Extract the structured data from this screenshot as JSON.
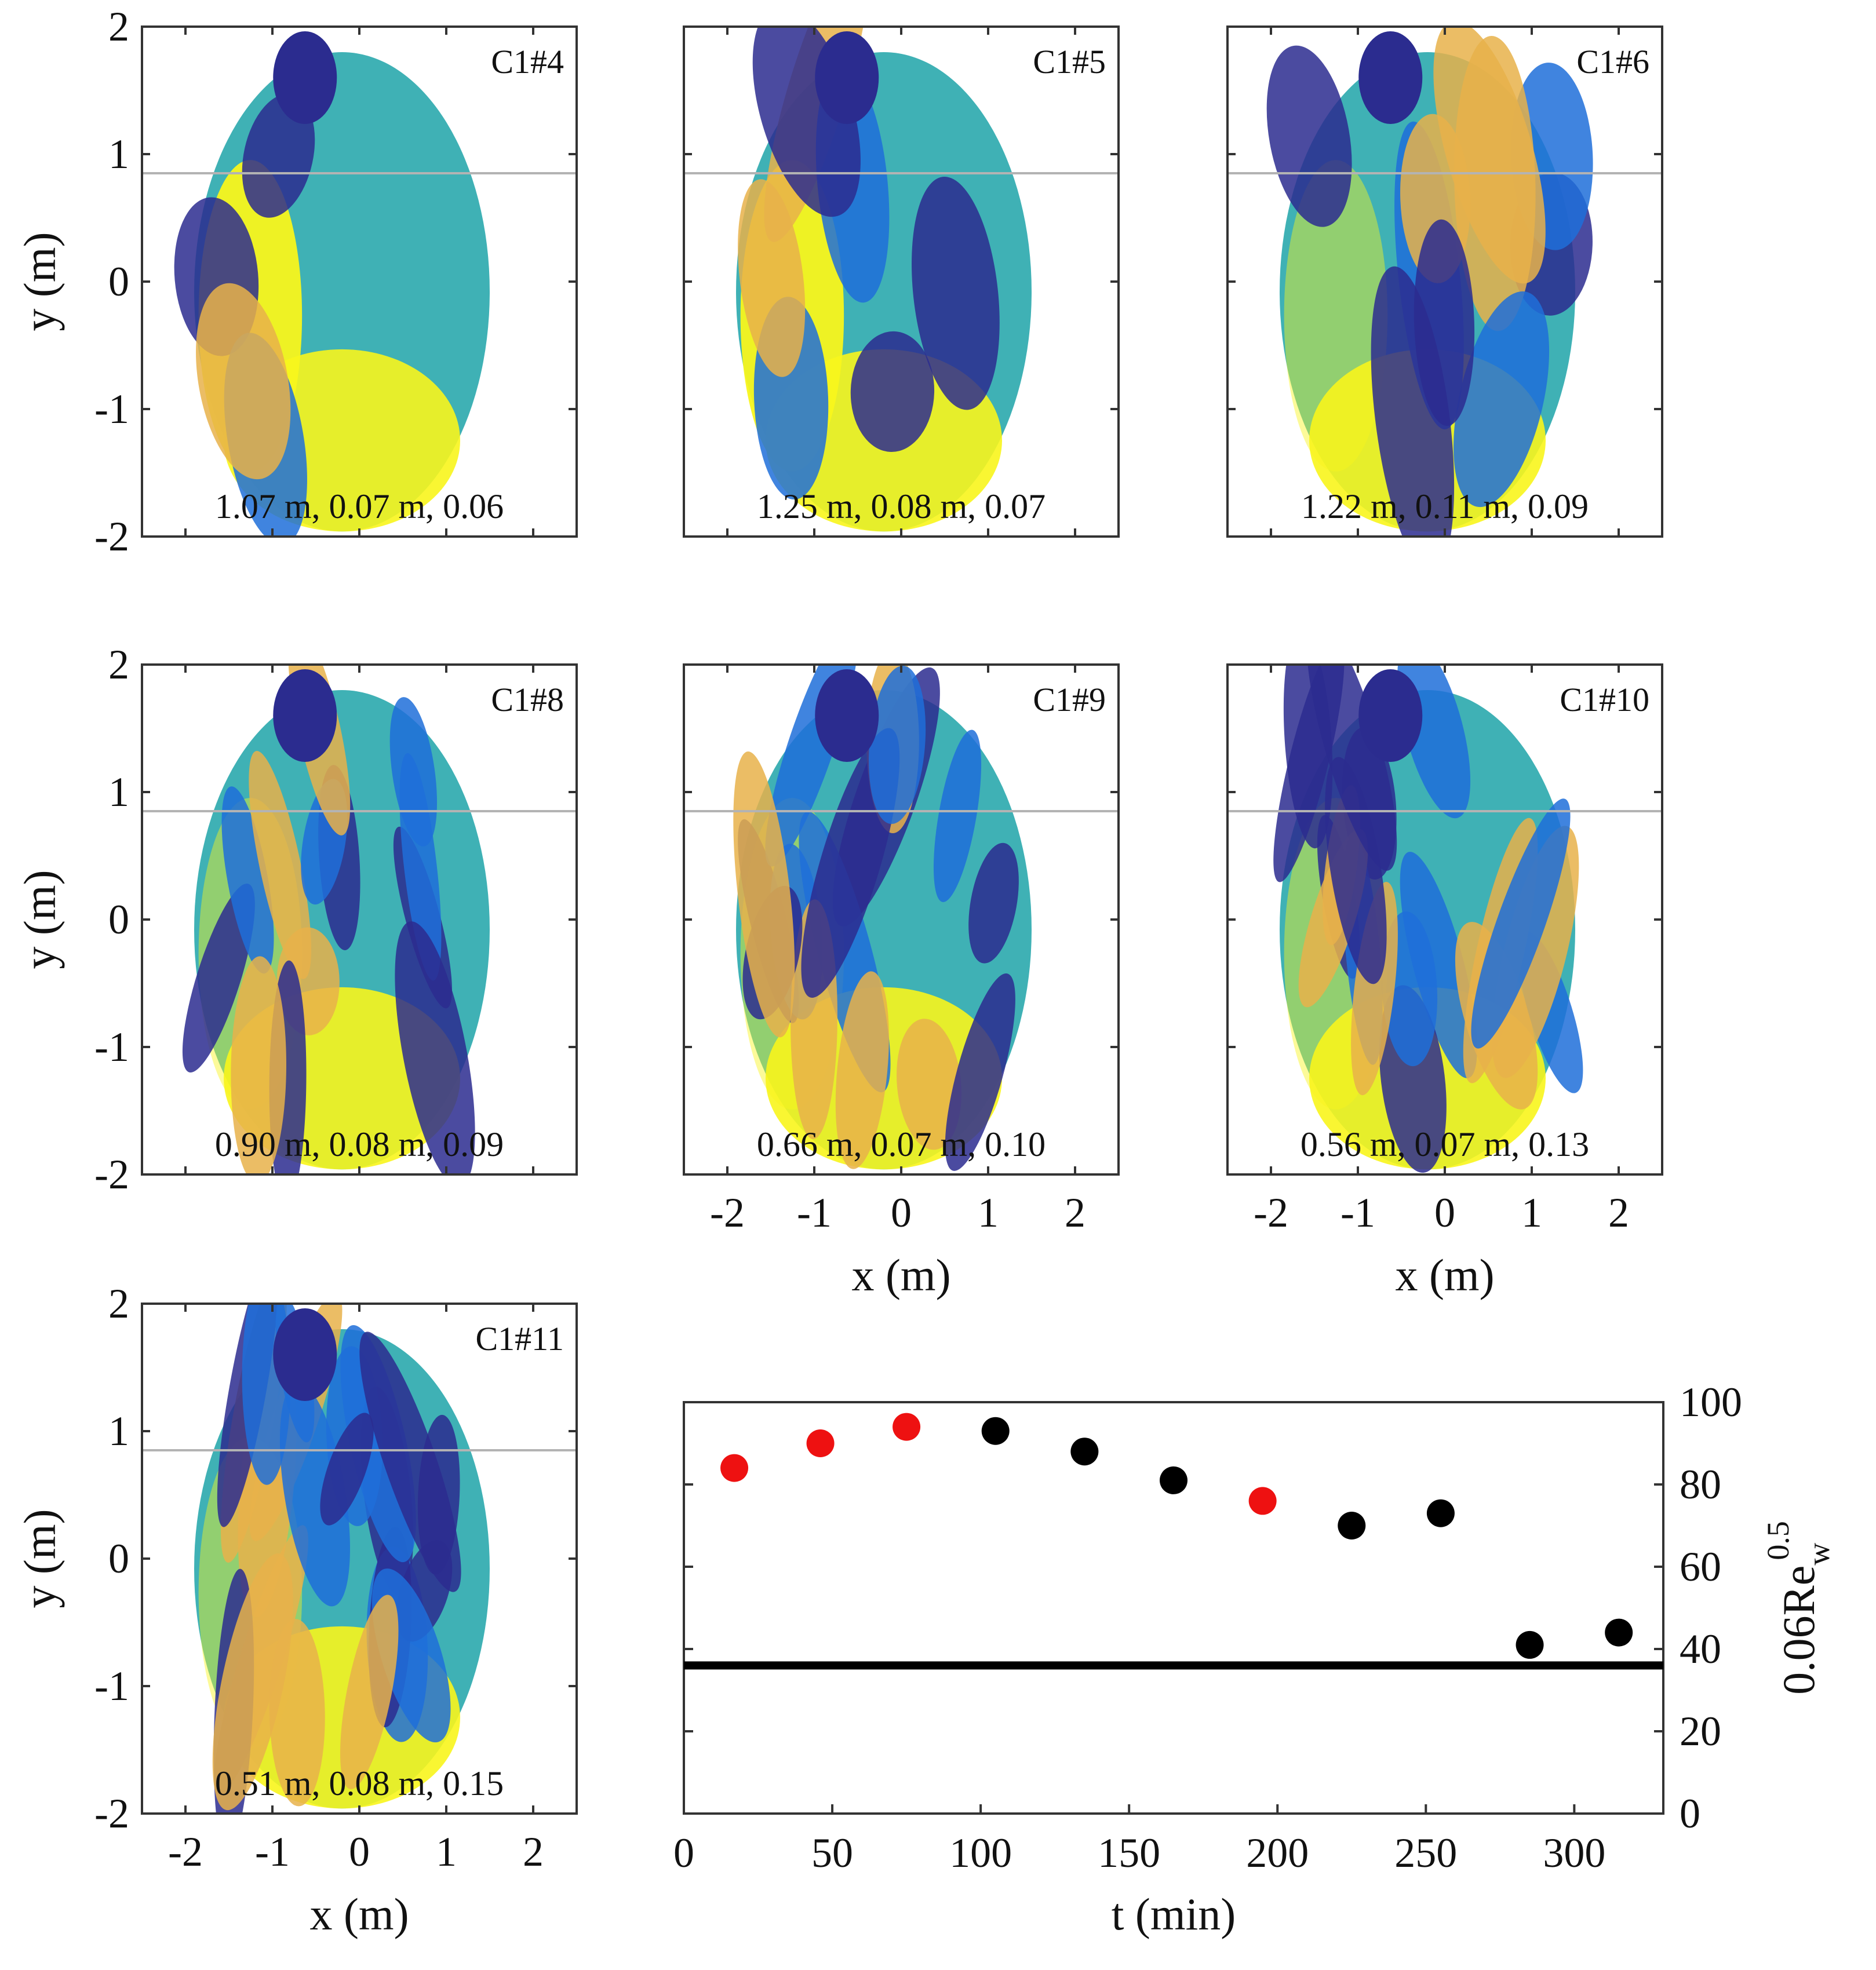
{
  "map_axes": {
    "xlabel": "x (m)",
    "ylabel": "y (m)",
    "x_ticks": [
      "-2",
      "-1",
      "0",
      "1",
      "2"
    ],
    "y_ticks": [
      "2",
      "1",
      "0",
      "-1",
      "-2"
    ],
    "xlim": [
      -2.5,
      2.5
    ],
    "ylim": [
      -2,
      2
    ],
    "reference_line_y": 0.85,
    "reference_line_color": "#b3b3b3"
  },
  "colormap": {
    "name": "parula",
    "low": "#2b2c8f",
    "mid_low": "#1f6fd9",
    "mid": "#3fb1b5",
    "mid_high": "#e8b14a",
    "high": "#f8f51c"
  },
  "panels": [
    {
      "id": "C1#4",
      "caption": "1.07 m, 0.07 m, 0.06",
      "show_xaxis": false
    },
    {
      "id": "C1#5",
      "caption": "1.25 m, 0.08 m, 0.07",
      "show_xaxis": false
    },
    {
      "id": "C1#6",
      "caption": "1.22 m, 0.11 m, 0.09",
      "show_xaxis": false
    },
    {
      "id": "C1#8",
      "caption": "0.90 m, 0.08 m, 0.09",
      "show_xaxis": false
    },
    {
      "id": "C1#9",
      "caption": "0.66 m, 0.07 m, 0.10",
      "show_xaxis": true
    },
    {
      "id": "C1#10",
      "caption": "0.56 m, 0.07 m, 0.13",
      "show_xaxis": true
    },
    {
      "id": "C1#11",
      "caption": "0.51 m, 0.08 m, 0.15",
      "show_xaxis": true
    }
  ],
  "chart_data": {
    "type": "scatter",
    "title": "",
    "xlabel": "t (min)",
    "ylabel": "0.06Re",
    "ylabel_sub": "w",
    "ylabel_sup": "0.5",
    "xlim": [
      0,
      330
    ],
    "ylim": [
      0,
      100
    ],
    "x_ticks": [
      0,
      50,
      100,
      150,
      200,
      250,
      300
    ],
    "y_ticks": [
      0,
      20,
      40,
      60,
      80,
      100
    ],
    "points": [
      {
        "t": 17,
        "value": 84,
        "color": "#ee1111"
      },
      {
        "t": 46,
        "value": 90,
        "color": "#ee1111"
      },
      {
        "t": 75,
        "value": 94,
        "color": "#ee1111"
      },
      {
        "t": 105,
        "value": 93,
        "color": "#000000"
      },
      {
        "t": 135,
        "value": 88,
        "color": "#000000"
      },
      {
        "t": 165,
        "value": 81,
        "color": "#000000"
      },
      {
        "t": 195,
        "value": 76,
        "color": "#ee1111"
      },
      {
        "t": 225,
        "value": 70,
        "color": "#000000"
      },
      {
        "t": 255,
        "value": 73,
        "color": "#000000"
      },
      {
        "t": 285,
        "value": 41,
        "color": "#000000"
      },
      {
        "t": 315,
        "value": 44,
        "color": "#000000"
      }
    ],
    "reference_line": {
      "value": 36,
      "color": "#000000"
    }
  }
}
